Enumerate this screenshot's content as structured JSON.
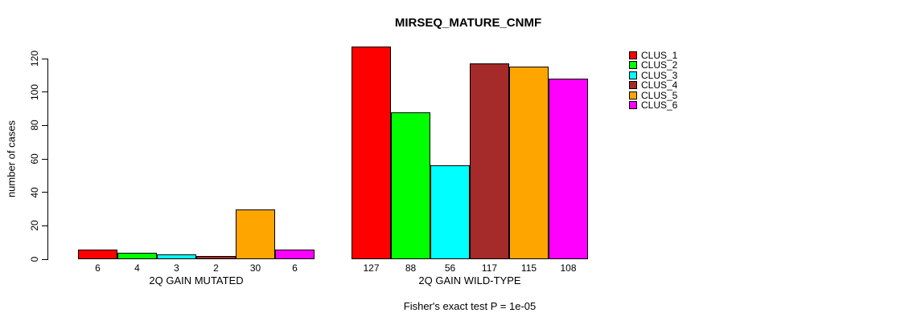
{
  "chart_data": {
    "type": "bar",
    "title": "MIRSEQ_MATURE_CNMF",
    "ylabel": "number of cases",
    "xlabel": "",
    "ylim": [
      0,
      120
    ],
    "yticks": [
      0,
      20,
      40,
      60,
      80,
      100,
      120
    ],
    "grid": false,
    "legend_position": "right",
    "series": [
      {
        "name": "CLUS_1",
        "color": "#FF0000"
      },
      {
        "name": "CLUS_2",
        "color": "#00FF00"
      },
      {
        "name": "CLUS_3",
        "color": "#00FFFF"
      },
      {
        "name": "CLUS_4",
        "color": "#A52A2A"
      },
      {
        "name": "CLUS_5",
        "color": "#FFA500"
      },
      {
        "name": "CLUS_6",
        "color": "#FF00FF"
      }
    ],
    "groups": [
      {
        "label": "2Q GAIN MUTATED",
        "values": [
          6,
          4,
          3,
          2,
          30,
          6
        ]
      },
      {
        "label": "2Q GAIN WILD-TYPE",
        "values": [
          127,
          88,
          56,
          117,
          115,
          108
        ]
      }
    ],
    "annotation": "Fisher's exact test P = 1e-05"
  }
}
